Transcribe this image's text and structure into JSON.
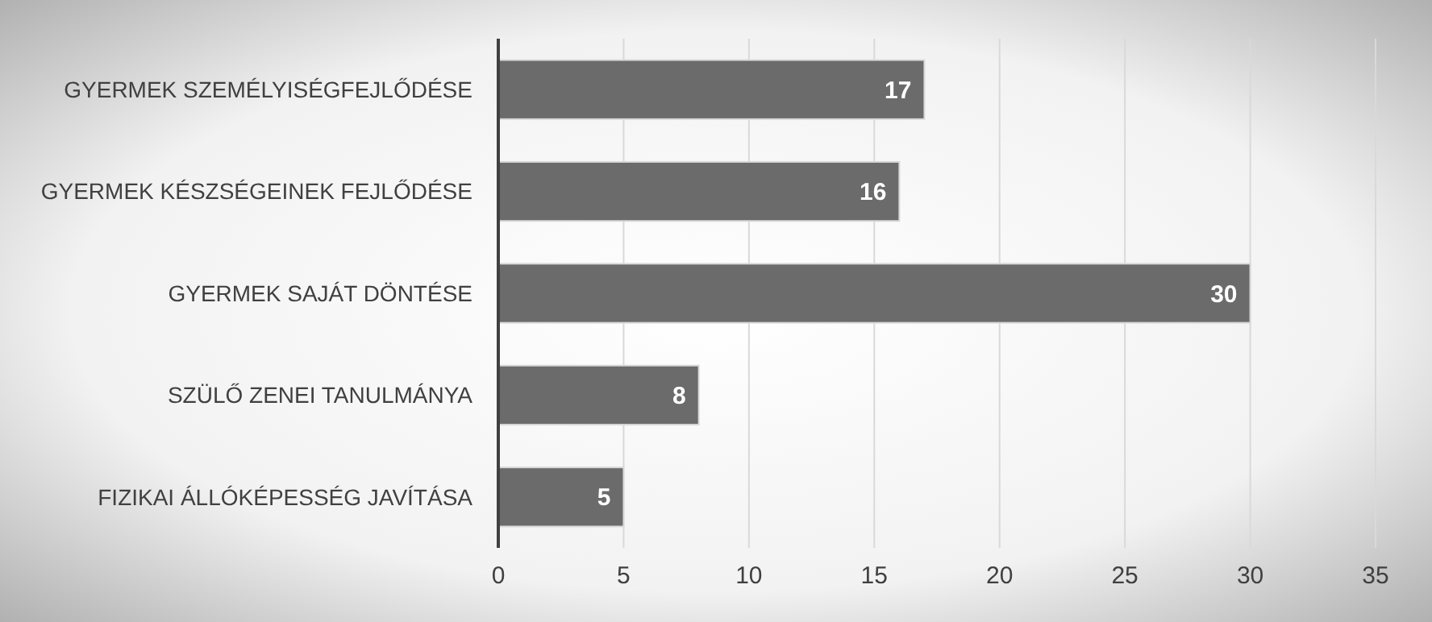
{
  "chart_data": {
    "type": "bar",
    "orientation": "horizontal",
    "categories": [
      "GYERMEK SZEMÉLYISÉGFEJLŐDÉSE",
      "GYERMEK KÉSZSÉGEINEK FEJLŐDÉSE",
      "GYERMEK SAJÁT DÖNTÉSE",
      "SZÜLŐ ZENEI TANULMÁNYA",
      "FIZIKAI ÁLLÓKÉPESSÉG JAVÍTÁSA"
    ],
    "values": [
      17,
      16,
      30,
      8,
      5
    ],
    "color": "#6b6b6b",
    "xlim": [
      0,
      35
    ],
    "xticks": [
      0,
      5,
      10,
      15,
      20,
      25,
      30,
      35
    ],
    "grid": "x",
    "data_labels": true
  }
}
